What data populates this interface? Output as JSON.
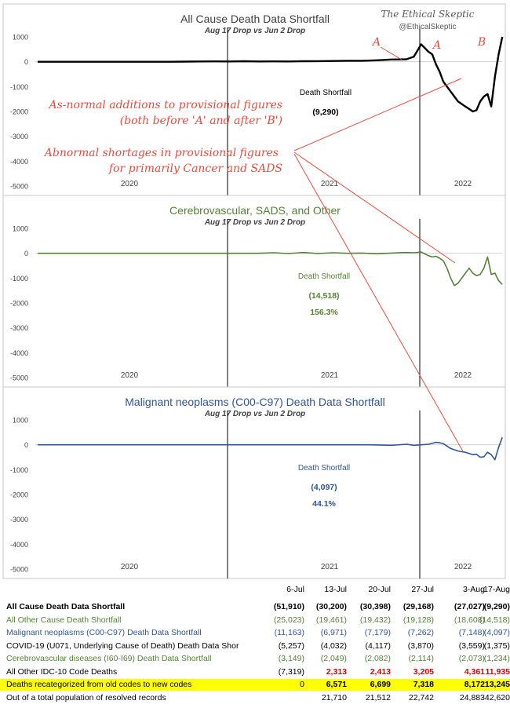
{
  "watermark": {
    "title": "The Ethical Skeptic",
    "handle": "@EthicalSkeptic"
  },
  "annotations": {
    "marker_a1": "A",
    "marker_a2": "A",
    "marker_b": "B",
    "note1_line1": "As-normal additions to provisional figures",
    "note1_line2": "(both before 'A' and after 'B')",
    "note2_line1": "Abnormal shortages in provisional figures",
    "note2_line2": "for primarily Cancer and SADS"
  },
  "chart_data": [
    {
      "type": "line",
      "title": "All Cause Death Data Shortfall",
      "subtitle": "Aug 17 Drop vs Jun 2 Drop",
      "color": "#000000",
      "ylim": [
        -5000,
        1000
      ],
      "yticks": [
        1000,
        0,
        -1000,
        -2000,
        -3000,
        -4000,
        -5000
      ],
      "xlabels": [
        "2020",
        "2021",
        "2022"
      ],
      "label": "Death Shortfall",
      "value": "(9,290)",
      "percent": "",
      "series": [
        {
          "x": [
            0,
            20,
            40,
            60,
            80,
            100,
            120,
            140,
            160,
            180,
            200,
            220,
            240,
            260,
            280,
            300,
            320,
            340,
            360,
            380,
            400,
            420,
            440,
            460,
            480,
            500,
            510,
            520,
            530,
            535,
            540,
            545,
            550,
            555,
            560,
            565,
            570,
            575,
            580,
            585,
            590,
            595,
            600,
            605,
            610,
            615,
            620,
            625,
            630
          ],
          "y": [
            0,
            0,
            0,
            0,
            0,
            0,
            0,
            0,
            0,
            0,
            5,
            10,
            15,
            10,
            20,
            10,
            15,
            10,
            20,
            25,
            30,
            40,
            40,
            60,
            90,
            100,
            200,
            700,
            400,
            300,
            -100,
            -400,
            -800,
            -1000,
            -1200,
            -1400,
            -1600,
            -1700,
            -1800,
            -1900,
            -2000,
            -1950,
            -1600,
            -1400,
            -1300,
            -1800,
            -600,
            300,
            1000
          ]
        }
      ]
    },
    {
      "type": "line",
      "title": "Cerebrovascular, SADS, and Other",
      "subtitle": "Aug 17 Drop vs Jun 2 Drop",
      "color": "#548235",
      "ylim": [
        -5000,
        1000
      ],
      "yticks": [
        1000,
        0,
        -1000,
        -2000,
        -3000,
        -4000,
        -5000
      ],
      "xlabels": [
        "2020",
        "2021",
        "2022"
      ],
      "label": "Death Shortfall",
      "value": "(14,518)",
      "percent": "156.3%",
      "series": [
        {
          "x": [
            0,
            50,
            100,
            150,
            200,
            250,
            300,
            320,
            340,
            360,
            380,
            400,
            420,
            440,
            460,
            480,
            500,
            510,
            520,
            530,
            535,
            540,
            545,
            550,
            555,
            560,
            565,
            570,
            575,
            580,
            585,
            590,
            595,
            600,
            605,
            610,
            615,
            620,
            625,
            630
          ],
          "y": [
            0,
            0,
            0,
            0,
            0,
            0,
            0,
            20,
            -10,
            30,
            -10,
            20,
            0,
            10,
            -20,
            10,
            30,
            20,
            50,
            -100,
            -150,
            -120,
            -200,
            -300,
            -600,
            -1000,
            -1300,
            -1200,
            -1000,
            -800,
            -600,
            -800,
            -900,
            -850,
            -600,
            -150,
            -850,
            -800,
            -1100,
            -1250
          ]
        }
      ]
    },
    {
      "type": "line",
      "title": "Malignant neoplasms (C00-C97) Death Data Shortfall",
      "subtitle": "Aug 17 Drop vs Jun 2 Drop",
      "color": "#2f5597",
      "ylim": [
        -5000,
        1000
      ],
      "yticks": [
        1000,
        0,
        -1000,
        -2000,
        -3000,
        -4000,
        -5000
      ],
      "xlabels": [
        "2020",
        "2021",
        "2022"
      ],
      "label": "Death Shortfall",
      "value": "(4,097)",
      "percent": "44.1%",
      "series": [
        {
          "x": [
            0,
            50,
            100,
            150,
            200,
            250,
            300,
            350,
            400,
            450,
            480,
            500,
            510,
            520,
            530,
            540,
            545,
            550,
            555,
            560,
            565,
            570,
            575,
            580,
            585,
            590,
            595,
            600,
            605,
            610,
            615,
            620,
            625,
            630
          ],
          "y": [
            0,
            0,
            0,
            0,
            0,
            0,
            0,
            0,
            0,
            0,
            -20,
            20,
            -20,
            0,
            20,
            100,
            80,
            50,
            -50,
            -150,
            -200,
            -250,
            -280,
            -300,
            -350,
            -400,
            -380,
            -500,
            -480,
            -300,
            -400,
            -600,
            -100,
            300
          ]
        }
      ]
    }
  ],
  "table": {
    "columns": [
      "6-Jul",
      "13-Jul",
      "20-Jul",
      "27-Jul",
      "3-Aug",
      "17-Aug"
    ],
    "rows": [
      {
        "label": "All Cause Death Data Shortfall",
        "values": [
          "(51,910)",
          "(30,200)",
          "(30,398)",
          "(29,168)",
          "(27,027)",
          "(9,290)"
        ],
        "color": "#000000",
        "bold": true,
        "highlight": false,
        "red": false
      },
      {
        "label": "All Other Cause Death Shortfall",
        "values": [
          "(25,023)",
          "(19,461)",
          "(19,432)",
          "(19,128)",
          "(18,608)",
          "(14,518)"
        ],
        "color": "#548235",
        "bold": false,
        "highlight": false,
        "red": false
      },
      {
        "label": "Malignant neoplasms (C00-C97) Death Data Shortfall",
        "values": [
          "(11,163)",
          "(6,971)",
          "(7,179)",
          "(7,262)",
          "(7,148)",
          "(4,097)"
        ],
        "color": "#2f5597",
        "bold": false,
        "highlight": false,
        "red": false
      },
      {
        "label": "COVID-19 (U071, Underlying Cause of Death) Death Data Shor",
        "values": [
          "(5,257)",
          "(4,032)",
          "(4,117)",
          "(3,870)",
          "(3,559)",
          "(1,375)"
        ],
        "color": "#000000",
        "bold": false,
        "highlight": false,
        "red": false
      },
      {
        "label": "Cerebrovascular diseases (I60-I69) Death Data Shortfall",
        "values": [
          "(3,149)",
          "(2,049)",
          "(2,082)",
          "(2,114)",
          "(2,073)",
          "(1,234)"
        ],
        "color": "#548235",
        "bold": false,
        "highlight": false,
        "red": false
      },
      {
        "label": "All Other IDC-10 Code Deaths",
        "values": [
          "(7,319)",
          "2,313",
          "2,413",
          "3,205",
          "4,361",
          "11,935"
        ],
        "color": "#000000",
        "bold": false,
        "highlight": false,
        "red": true
      },
      {
        "label": "Deaths recategorized from old codes to new codes",
        "values": [
          "0",
          "6,571",
          "6,699",
          "7,318",
          "8,172",
          "13,245"
        ],
        "color": "#000000",
        "bold": false,
        "highlight": true,
        "red": false
      },
      {
        "label": "Out of a total population of resolved records",
        "values": [
          "",
          "21,710",
          "21,512",
          "22,742",
          "24,883",
          "42,620"
        ],
        "color": "#000000",
        "bold": false,
        "highlight": false,
        "red": false
      }
    ]
  }
}
